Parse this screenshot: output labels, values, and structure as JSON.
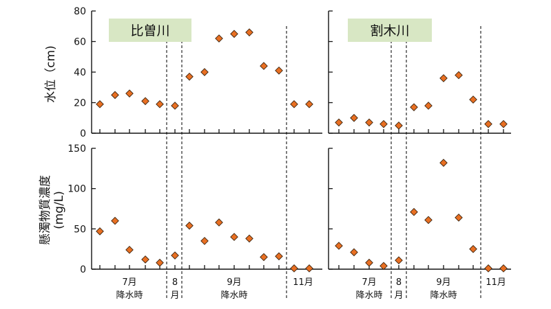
{
  "chart_data": {
    "type": "scatter",
    "marker": "diamond",
    "colors": {
      "marker_fill": "#e86f22",
      "marker_edge": "#3a2410",
      "title_bg": "#d8e7c4",
      "axis": "#111111"
    },
    "panels": [
      {
        "title": "比曽川",
        "y_label": "水位（cm)",
        "y_ticks": [
          "0",
          "20",
          "40",
          "60",
          "80"
        ],
        "ylim": [
          0,
          80
        ],
        "values": [
          19,
          25,
          26,
          21,
          19,
          18,
          37,
          40,
          62,
          65,
          66,
          44,
          41,
          19,
          19
        ]
      },
      {
        "title": "割木川",
        "y_label": "水位（cm)",
        "y_ticks": [
          "0",
          "20",
          "40",
          "60",
          "80"
        ],
        "ylim": [
          0,
          80
        ],
        "values": [
          7,
          10,
          7,
          6,
          5,
          17,
          18,
          36,
          38,
          22,
          6,
          6
        ]
      },
      {
        "title": "",
        "y_label": "懸濁物質濃度",
        "y_label_2": "(mg/L)",
        "y_ticks": [
          "0",
          "50",
          "100",
          "150"
        ],
        "ylim": [
          0,
          150
        ],
        "values": [
          47,
          60,
          24,
          12,
          8,
          17,
          54,
          35,
          58,
          40,
          38,
          15,
          16,
          1,
          1
        ]
      },
      {
        "title": "",
        "y_label": "懸濁物質濃度",
        "y_label_2": "(mg/L)",
        "y_ticks": [
          "0",
          "50",
          "100",
          "150"
        ],
        "ylim": [
          0,
          150
        ],
        "values": [
          29,
          21,
          8,
          4,
          11,
          71,
          61,
          132,
          64,
          25,
          1,
          1
        ]
      }
    ],
    "x_groups": {
      "left": [
        {
          "line1": "7月",
          "line2": "降水時"
        },
        {
          "line1": "8",
          "line2": "月"
        },
        {
          "line1": "9月",
          "line2": "降水時"
        },
        {
          "line1": "11月",
          "line2": ""
        }
      ],
      "right": [
        {
          "line1": "7月",
          "line2": "降水時"
        },
        {
          "line1": "8",
          "line2": "月"
        },
        {
          "line1": "9月",
          "line2": "降水時"
        },
        {
          "line1": "11月",
          "line2": ""
        }
      ]
    }
  }
}
